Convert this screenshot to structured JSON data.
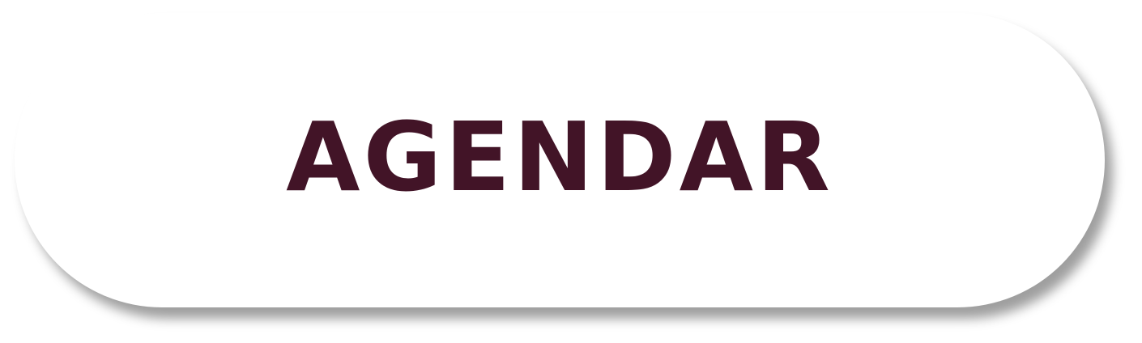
{
  "button": {
    "label": "AGENDAR"
  },
  "colors": {
    "label_text": "#421427",
    "button_background": "#ffffff",
    "page_background": "#ffffff"
  }
}
